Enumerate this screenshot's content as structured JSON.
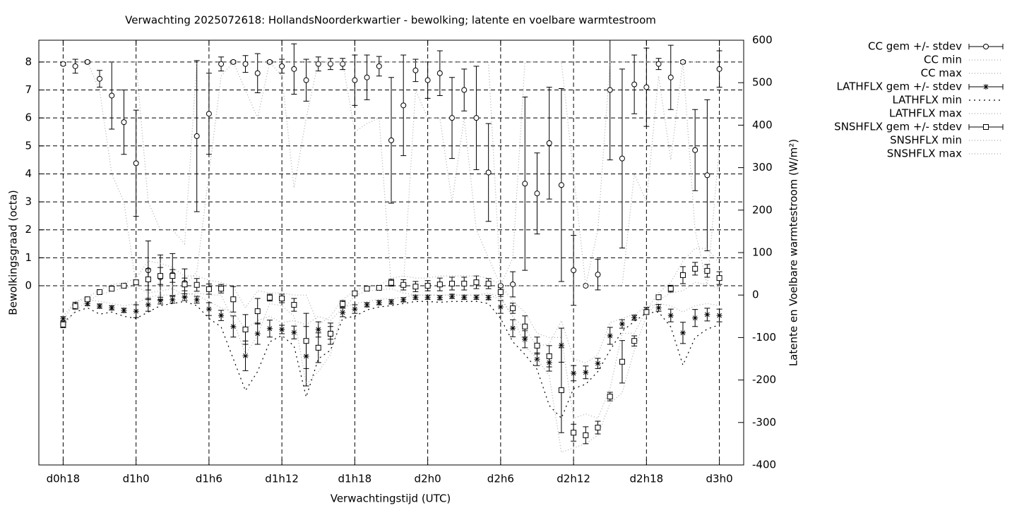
{
  "chart_data": {
    "type": "errorbar-line",
    "title": "Verwachting 2025072618: HollandsNoorderkwartier - bewolking; latente en voelbare warmtestroom",
    "x_label": "Verwachtingstijd (UTC)",
    "y_label": "Bewolkingsgraad (octa)",
    "y2_label": "Latente en Voelbare warmtestroom (W/m²)",
    "x": [
      18,
      19,
      20,
      21,
      22,
      23,
      24,
      25,
      26,
      27,
      28,
      29,
      30,
      31,
      32,
      33,
      34,
      35,
      36,
      37,
      38,
      39,
      40,
      41,
      42,
      43,
      44,
      45,
      46,
      47,
      48,
      49,
      50,
      51,
      52,
      53,
      54,
      55,
      56,
      57,
      58,
      59,
      60,
      61,
      62,
      63,
      64,
      65,
      66,
      67,
      68,
      69,
      70,
      71,
      72
    ],
    "xlim": [
      16,
      74
    ],
    "xticks": [
      {
        "value": 18,
        "label": "d0h18"
      },
      {
        "value": 24,
        "label": "d1h0"
      },
      {
        "value": 30,
        "label": "d1h6"
      },
      {
        "value": 36,
        "label": "d1h12"
      },
      {
        "value": 42,
        "label": "d1h18"
      },
      {
        "value": 48,
        "label": "d2h0"
      },
      {
        "value": 54,
        "label": "d2h6"
      },
      {
        "value": 60,
        "label": "d2h12"
      },
      {
        "value": 66,
        "label": "d2h18"
      },
      {
        "value": 72,
        "label": "d3h0"
      }
    ],
    "ylim": [
      -6.41,
      8.78
    ],
    "yticks": [
      0,
      1,
      2,
      3,
      4,
      5,
      6,
      7,
      8
    ],
    "y2lim": [
      -400,
      600
    ],
    "y2ticks": [
      -400,
      -300,
      -200,
      -100,
      0,
      100,
      200,
      300,
      400,
      500,
      600
    ],
    "grid": true,
    "legend": "outside-right",
    "series": [
      {
        "name": "CC gem +/- stdev",
        "color": "#000000",
        "marker": "circle",
        "axis": "y",
        "values": [
          7.93,
          7.85,
          8.0,
          7.4,
          6.8,
          5.85,
          4.38,
          0.55,
          0.3,
          0.4,
          0.1,
          5.35,
          6.15,
          7.93,
          8.0,
          7.93,
          7.6,
          8.0,
          7.85,
          7.75,
          7.35,
          7.93,
          7.93,
          7.93,
          7.35,
          7.45,
          7.85,
          5.2,
          6.45,
          7.7,
          7.35,
          7.6,
          6.0,
          7.0,
          6.0,
          4.05,
          0.0,
          0.05,
          3.65,
          3.3,
          5.1,
          3.6,
          0.55,
          0.0,
          0.4,
          7.0,
          4.55,
          7.2,
          7.1,
          7.93,
          7.45,
          8.0,
          4.85,
          3.95,
          7.75
        ],
        "errors": [
          0.05,
          0.25,
          0.05,
          0.3,
          1.2,
          1.15,
          1.9,
          1.05,
          0.8,
          0.75,
          0.5,
          2.7,
          1.45,
          0.25,
          0.05,
          0.3,
          0.7,
          0.05,
          0.25,
          0.9,
          0.75,
          0.25,
          0.2,
          0.2,
          0.9,
          0.8,
          0.35,
          2.25,
          1.8,
          0.4,
          0.65,
          0.8,
          1.45,
          0.75,
          1.85,
          1.75,
          0.0,
          0.45,
          3.1,
          1.45,
          2.0,
          3.45,
          1.25,
          0.0,
          0.55,
          2.5,
          3.2,
          1.05,
          1.4,
          0.2,
          1.15,
          0.05,
          1.45,
          2.7,
          0.65
        ]
      },
      {
        "name": "CC min",
        "color": "#aaaaaa",
        "dash": "1 3",
        "axis": "y",
        "values": [
          8,
          8,
          8,
          7,
          4,
          3,
          0,
          0,
          0,
          0,
          0,
          0.5,
          4,
          7.5,
          8,
          7,
          6,
          8,
          7.5,
          3.5,
          6,
          8,
          8,
          8,
          5.5,
          5.8,
          6,
          0,
          0,
          7,
          6,
          6,
          3,
          6,
          2,
          1,
          0,
          0,
          0,
          0,
          0,
          0,
          0,
          0,
          0,
          0,
          0,
          4,
          3,
          7.5,
          4.5,
          8,
          2,
          0,
          5
        ]
      },
      {
        "name": "CC max",
        "color": "#aaaaaa",
        "dash": "1 3",
        "axis": "y",
        "values": [
          8,
          8,
          8,
          8,
          8,
          8,
          8,
          3,
          2,
          2,
          1.5,
          8,
          8,
          8,
          8,
          8,
          8,
          8,
          8,
          8,
          8,
          8,
          8,
          8,
          8,
          8,
          8,
          8,
          8,
          8,
          8,
          8,
          8,
          8,
          8,
          8,
          0,
          1,
          8,
          8,
          8,
          8,
          4,
          0,
          2,
          8,
          8,
          8,
          8,
          8,
          8,
          8,
          8,
          8,
          8
        ]
      },
      {
        "name": "LATHFLX gem +/- stdev",
        "color": "#000000",
        "marker": "star",
        "axis": "y2",
        "values": [
          -56,
          -25,
          -20,
          -26,
          -30,
          -36,
          -38,
          -23,
          -13,
          -11,
          -5,
          -11,
          -33,
          -48,
          -74,
          -143,
          -91,
          -79,
          -81,
          -88,
          -144,
          -81,
          -89,
          -41,
          -33,
          -23,
          -18,
          -16,
          -11,
          -5,
          -5,
          -6,
          -3,
          -5,
          -5,
          -6,
          -28,
          -78,
          -104,
          -151,
          -159,
          -118,
          -184,
          -182,
          -161,
          -96,
          -68,
          -53,
          -35,
          -30,
          -48,
          -89,
          -54,
          -46,
          -48
        ],
        "errors": [
          5,
          8,
          5,
          5,
          5,
          5,
          15,
          15,
          8,
          8,
          8,
          8,
          15,
          12,
          25,
          35,
          25,
          20,
          10,
          15,
          70,
          18,
          15,
          10,
          10,
          5,
          5,
          5,
          5,
          5,
          5,
          5,
          5,
          5,
          5,
          5,
          15,
          20,
          20,
          15,
          20,
          40,
          18,
          15,
          12,
          20,
          10,
          6,
          6,
          8,
          15,
          25,
          20,
          15,
          15
        ]
      },
      {
        "name": "LATHFLX min",
        "color": "#000000",
        "dash": "2 5",
        "axis": "y2",
        "values": [
          -65,
          -40,
          -30,
          -45,
          -40,
          -50,
          -55,
          -40,
          -25,
          -20,
          -15,
          -25,
          -55,
          -75,
          -150,
          -225,
          -180,
          -110,
          -95,
          -120,
          -240,
          -150,
          -130,
          -55,
          -50,
          -35,
          -28,
          -25,
          -20,
          -15,
          -15,
          -17,
          -15,
          -15,
          -15,
          -20,
          -55,
          -110,
          -140,
          -175,
          -260,
          -290,
          -220,
          -210,
          -180,
          -130,
          -85,
          -62,
          -42,
          -40,
          -75,
          -165,
          -100,
          -80,
          -70
        ]
      },
      {
        "name": "LATHFLX max",
        "color": "#aaaaaa",
        "dash": "1 3",
        "axis": "y2",
        "values": [
          -50,
          -15,
          -10,
          -15,
          -20,
          -25,
          -20,
          -5,
          0,
          0,
          5,
          0,
          -15,
          -30,
          -40,
          -80,
          -60,
          -50,
          -65,
          -60,
          -70,
          -50,
          -60,
          -30,
          -20,
          -15,
          -10,
          -8,
          -5,
          0,
          0,
          0,
          0,
          0,
          0,
          0,
          -10,
          -50,
          -80,
          -120,
          -115,
          -60,
          -150,
          -160,
          -140,
          -65,
          -55,
          -45,
          -28,
          -20,
          -25,
          -40,
          -25,
          -20,
          -25
        ]
      },
      {
        "name": "SNSHFLX gem +/- stdev",
        "color": "#000000",
        "marker": "square",
        "axis": "y2",
        "values": [
          -69,
          -26,
          -10,
          7,
          15,
          22,
          30,
          37,
          45,
          45,
          25,
          24,
          14,
          15,
          -10,
          -81,
          -38,
          -6,
          -8,
          -23,
          -108,
          -124,
          -91,
          -21,
          4,
          15,
          17,
          29,
          24,
          20,
          22,
          25,
          27,
          27,
          30,
          27,
          7,
          -31,
          -74,
          -119,
          -144,
          -224,
          -324,
          -330,
          -312,
          -239,
          -157,
          -108,
          -40,
          -5,
          15,
          47,
          62,
          57,
          40
        ],
        "errors": [
          8,
          6,
          5,
          3,
          5,
          2,
          5,
          25,
          20,
          15,
          15,
          15,
          12,
          10,
          30,
          35,
          30,
          8,
          10,
          15,
          65,
          35,
          25,
          8,
          5,
          3,
          3,
          8,
          12,
          12,
          12,
          15,
          15,
          15,
          15,
          12,
          10,
          12,
          25,
          20,
          25,
          100,
          20,
          20,
          15,
          10,
          50,
          12,
          5,
          3,
          8,
          20,
          15,
          15,
          15
        ]
      },
      {
        "name": "SNSHFLX min",
        "color": "#aaaaaa",
        "dash": "1 3",
        "axis": "y2",
        "values": [
          -75,
          -35,
          -15,
          2,
          8,
          18,
          20,
          5,
          10,
          15,
          0,
          5,
          0,
          0,
          -60,
          -140,
          -95,
          -20,
          -25,
          -50,
          -210,
          -180,
          -140,
          -35,
          -2,
          10,
          12,
          15,
          5,
          0,
          0,
          0,
          0,
          0,
          0,
          5,
          -5,
          -50,
          -120,
          -150,
          -190,
          -370,
          -360,
          -350,
          -330,
          -255,
          -230,
          -130,
          -48,
          -12,
          5,
          10,
          30,
          25,
          15
        ]
      },
      {
        "name": "SNSHFLX max",
        "color": "#aaaaaa",
        "dash": "1 3",
        "axis": "y2",
        "values": [
          -60,
          -15,
          -5,
          12,
          25,
          28,
          40,
          80,
          75,
          65,
          45,
          45,
          35,
          30,
          20,
          -30,
          10,
          5,
          5,
          0,
          0,
          -70,
          -50,
          -10,
          10,
          20,
          22,
          40,
          45,
          40,
          40,
          45,
          45,
          45,
          45,
          40,
          25,
          -15,
          -40,
          -90,
          -100,
          -100,
          -290,
          -280,
          -290,
          -220,
          -90,
          -90,
          -35,
          5,
          30,
          80,
          110,
          110,
          75
        ]
      }
    ]
  }
}
